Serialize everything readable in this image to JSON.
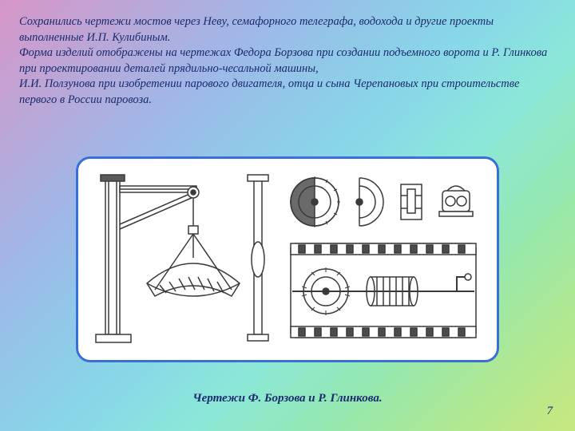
{
  "text": {
    "paragraph": "Сохранились чертежи мостов через Неву, семафорного телеграфа, водохода и другие проекты выполненные И.П. Кулибиным.\nФорма изделий отображены на чертежах Федора Борзова при создании подъемного ворота и Р. Глинкова при проектировании деталей прядильно-чесальной машины,\nИ.И. Ползунова при изобретении парового двигателя, отца и сына Черепановых при строительстве первого в России паровоза."
  },
  "caption": "Чертежи Ф. Борзова и Р. Глинкова.",
  "page_number": "7",
  "colors": {
    "text_color": "#1a2b6d",
    "frame_border": "#3a6fd8",
    "frame_bg": "#ffffff",
    "drawing_stroke": "#3a3a3a"
  },
  "figure": {
    "type": "technical-drawing",
    "panels": 2,
    "left": "Подъёмный ворот (кран с блоком и грузом)",
    "right": "Детали прядильно-чесальной машины (колёса, рама, валы)"
  }
}
